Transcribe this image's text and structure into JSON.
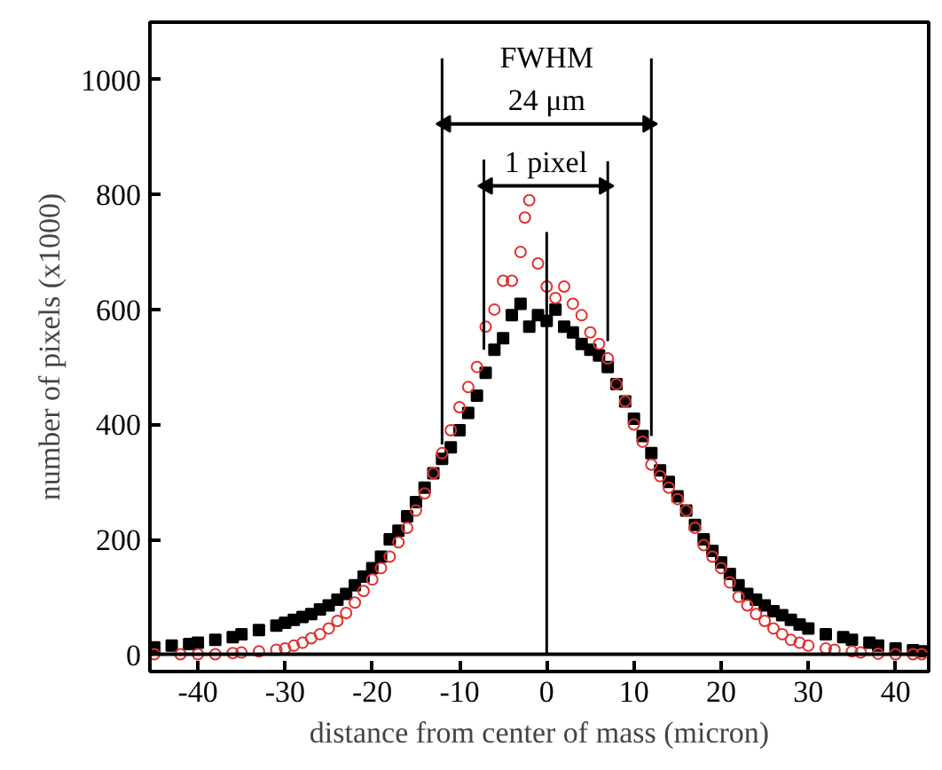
{
  "chart_data": {
    "type": "scatter",
    "xlabel": "distance from center of mass (micron)",
    "ylabel": "number of pixels (x1000)",
    "xlim": [
      -45.5,
      43.8
    ],
    "ylim": [
      -30,
      1100
    ],
    "xticks": [
      -40,
      -30,
      -20,
      -10,
      0,
      10,
      20,
      30,
      40
    ],
    "yticks": [
      0,
      200,
      400,
      600,
      800,
      1000
    ],
    "grid": false,
    "annotations": [
      "FWHM",
      "24 μm",
      "1 pixel"
    ],
    "ref_lines": [
      {
        "axis": "y",
        "value": 0,
        "color": "#000000"
      }
    ],
    "series": [
      {
        "marker": "square",
        "color": "#000000",
        "x": [
          -45,
          -43,
          -41,
          -40,
          -38,
          -36,
          -35,
          -33,
          -31,
          -30,
          -29,
          -28,
          -27,
          -26,
          -25,
          -24,
          -23,
          -22,
          -21,
          -20,
          -19,
          -18,
          -17,
          -16,
          -15,
          -14,
          -13,
          -12,
          -11,
          -10,
          -9,
          -8,
          -7,
          -6,
          -5,
          -4,
          -3,
          -2,
          -1,
          0,
          1,
          2,
          3,
          4,
          5,
          6,
          7,
          8,
          9,
          10,
          11,
          12,
          13,
          14,
          15,
          16,
          17,
          18,
          19,
          20,
          21,
          22,
          23,
          24,
          25,
          26,
          27,
          28,
          29,
          30,
          32,
          34,
          35,
          37,
          38,
          40,
          42,
          43
        ],
        "values": [
          12,
          15,
          18,
          20,
          25,
          30,
          35,
          42,
          50,
          55,
          60,
          65,
          70,
          78,
          85,
          95,
          105,
          120,
          135,
          150,
          170,
          200,
          215,
          240,
          265,
          290,
          315,
          340,
          360,
          390,
          420,
          450,
          490,
          530,
          550,
          590,
          610,
          570,
          590,
          580,
          600,
          570,
          560,
          540,
          530,
          520,
          500,
          470,
          440,
          410,
          380,
          350,
          320,
          300,
          275,
          250,
          225,
          200,
          180,
          160,
          140,
          120,
          105,
          95,
          85,
          75,
          68,
          60,
          52,
          45,
          35,
          30,
          25,
          20,
          15,
          10,
          7,
          5
        ]
      },
      {
        "marker": "circle",
        "color": "#e03030",
        "x": [
          -45,
          -42,
          -40,
          -38,
          -36,
          -35,
          -33,
          -31,
          -30,
          -29,
          -28,
          -27,
          -26,
          -25,
          -24,
          -23,
          -22,
          -21,
          -20,
          -19,
          -18,
          -17,
          -16,
          -15,
          -14,
          -13,
          -12,
          -11,
          -10,
          -9,
          -8,
          -7,
          -6,
          -5,
          -4,
          -3,
          -2.5,
          -2,
          -1,
          0,
          1,
          2,
          3,
          4,
          5,
          6,
          7,
          8,
          9,
          10,
          11,
          12,
          13,
          14,
          15,
          16,
          17,
          18,
          19,
          20,
          21,
          22,
          23,
          24,
          25,
          26,
          27,
          28,
          29,
          30,
          32,
          33,
          35,
          36,
          38,
          40,
          42,
          43
        ],
        "values": [
          0,
          0,
          0,
          0,
          2,
          3,
          5,
          8,
          10,
          15,
          20,
          28,
          35,
          45,
          58,
          72,
          90,
          110,
          130,
          150,
          170,
          195,
          220,
          250,
          280,
          315,
          350,
          390,
          430,
          465,
          500,
          570,
          600,
          650,
          650,
          700,
          760,
          790,
          680,
          640,
          620,
          640,
          610,
          590,
          560,
          540,
          515,
          470,
          440,
          400,
          370,
          330,
          310,
          290,
          270,
          250,
          220,
          190,
          170,
          150,
          125,
          100,
          85,
          70,
          58,
          45,
          35,
          25,
          20,
          15,
          10,
          8,
          5,
          3,
          1,
          0,
          0,
          0
        ]
      },
      {
        "type": "line",
        "color": "#000000",
        "x": [
          -12,
          -12
        ],
        "values": [
          365,
          1037
        ]
      },
      {
        "type": "line",
        "color": "#000000",
        "x": [
          12,
          12
        ],
        "values": [
          380,
          1037
        ]
      },
      {
        "type": "line",
        "color": "#000000",
        "x": [
          -7.2,
          -7.2
        ],
        "values": [
          530,
          861
        ]
      },
      {
        "type": "line",
        "color": "#000000",
        "x": [
          7,
          7
        ],
        "values": [
          545,
          858
        ]
      },
      {
        "type": "line",
        "color": "#000000",
        "x": [
          0,
          0
        ],
        "values": [
          0,
          735
        ]
      },
      {
        "type": "line",
        "marker": "triangle",
        "color": "#000000",
        "x": [
          -11.6,
          11.6
        ],
        "values": [
          923,
          923
        ]
      },
      {
        "type": "line",
        "marker": "triangle",
        "color": "#000000",
        "x": [
          -6.8,
          6.6
        ],
        "values": [
          815,
          815
        ]
      }
    ]
  }
}
